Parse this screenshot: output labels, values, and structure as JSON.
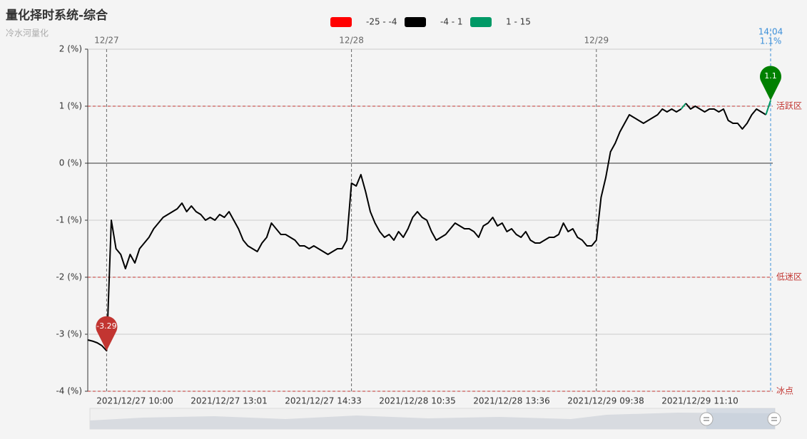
{
  "chart_data": {
    "type": "line",
    "title": "量化择时系统-综合",
    "subtitle": "冷水河量化",
    "categories": [
      null,
      null,
      null,
      null,
      null,
      null,
      null,
      null,
      null,
      null,
      "2021/12/27 10:00",
      null,
      null,
      null,
      null,
      null,
      null,
      null,
      null,
      null,
      null,
      null,
      null,
      null,
      null,
      null,
      null,
      null,
      null,
      null,
      "2021/12/27 13:01",
      null,
      null,
      null,
      null,
      null,
      null,
      null,
      null,
      null,
      null,
      null,
      null,
      null,
      null,
      null,
      null,
      null,
      null,
      null,
      "2021/12/27 14:33",
      null,
      null,
      null,
      null,
      null,
      null,
      null,
      null,
      null,
      null,
      null,
      null,
      null,
      null,
      null,
      null,
      null,
      null,
      null,
      "2021/12/28 10:35",
      null,
      null,
      null,
      null,
      null,
      null,
      null,
      null,
      null,
      null,
      null,
      null,
      null,
      null,
      null,
      null,
      null,
      null,
      null,
      "2021/12/28 13:36",
      null,
      null,
      null,
      null,
      null,
      null,
      null,
      null,
      null,
      null,
      null,
      null,
      null,
      null,
      null,
      null,
      null,
      null,
      null,
      "2021/12/29 09:38",
      null,
      null,
      null,
      null,
      null,
      null,
      null,
      null,
      null,
      null,
      null,
      null,
      null,
      null,
      null,
      null,
      null,
      null,
      null,
      "2021/12/29 11:10",
      null,
      null,
      null,
      null,
      null,
      null,
      null,
      null,
      null,
      null,
      null,
      null,
      null,
      null,
      null
    ],
    "top_categories": [
      null,
      null,
      null,
      null,
      "12/27",
      null,
      null,
      null,
      null,
      null,
      null,
      null,
      null,
      null,
      null,
      null,
      null,
      null,
      null,
      null,
      null,
      null,
      null,
      null,
      null,
      null,
      null,
      null,
      null,
      null,
      null,
      null,
      null,
      null,
      null,
      null,
      null,
      null,
      null,
      null,
      null,
      null,
      null,
      null,
      null,
      null,
      null,
      null,
      null,
      null,
      null,
      null,
      null,
      null,
      null,
      null,
      "12/28",
      null,
      null,
      null,
      null,
      null,
      null,
      null,
      null,
      null,
      null,
      null,
      null,
      null,
      null,
      null,
      null,
      null,
      null,
      null,
      null,
      null,
      null,
      null,
      null,
      null,
      null,
      null,
      null,
      null,
      null,
      null,
      null,
      null,
      null,
      null,
      null,
      null,
      null,
      null,
      null,
      null,
      null,
      null,
      null,
      null,
      null,
      null,
      null,
      null,
      null,
      null,
      "12/29",
      null,
      null,
      null,
      null,
      null,
      null,
      null,
      null,
      null,
      null,
      null,
      null,
      null,
      null,
      null,
      null,
      null,
      null,
      null,
      null,
      null,
      null,
      null,
      null,
      null,
      null,
      null,
      null,
      null,
      null,
      null,
      null,
      null,
      null,
      null,
      null,
      "14:04"
    ],
    "cursor_value_label": "1.1%",
    "values": [
      -3.1,
      -3.12,
      -3.15,
      -3.2,
      -3.29,
      -1.0,
      -1.5,
      -1.6,
      -1.85,
      -1.6,
      -1.75,
      -1.5,
      -1.4,
      -1.3,
      -1.15,
      -1.05,
      -0.95,
      -0.9,
      -0.85,
      -0.8,
      -0.7,
      -0.85,
      -0.75,
      -0.85,
      -0.9,
      -1.0,
      -0.95,
      -1.0,
      -0.9,
      -0.95,
      -0.85,
      -1.0,
      -1.15,
      -1.35,
      -1.45,
      -1.5,
      -1.55,
      -1.4,
      -1.3,
      -1.05,
      -1.15,
      -1.25,
      -1.25,
      -1.3,
      -1.35,
      -1.45,
      -1.45,
      -1.5,
      -1.45,
      -1.5,
      -1.55,
      -1.6,
      -1.55,
      -1.5,
      -1.5,
      -1.35,
      -0.35,
      -0.4,
      -0.2,
      -0.5,
      -0.85,
      -1.05,
      -1.2,
      -1.3,
      -1.25,
      -1.35,
      -1.2,
      -1.3,
      -1.15,
      -0.95,
      -0.85,
      -0.95,
      -1.0,
      -1.2,
      -1.35,
      -1.3,
      -1.25,
      -1.15,
      -1.05,
      -1.1,
      -1.15,
      -1.15,
      -1.2,
      -1.3,
      -1.1,
      -1.05,
      -0.95,
      -1.1,
      -1.05,
      -1.2,
      -1.15,
      -1.25,
      -1.3,
      -1.2,
      -1.35,
      -1.4,
      -1.4,
      -1.35,
      -1.3,
      -1.3,
      -1.25,
      -1.05,
      -1.2,
      -1.15,
      -1.3,
      -1.35,
      -1.45,
      -1.45,
      -1.35,
      -0.6,
      -0.25,
      0.2,
      0.35,
      0.55,
      0.7,
      0.85,
      0.8,
      0.75,
      0.7,
      0.75,
      0.8,
      0.85,
      0.95,
      0.9,
      0.95,
      0.9,
      0.95,
      1.05,
      0.95,
      1.0,
      0.95,
      0.9,
      0.95,
      0.95,
      0.9,
      0.95,
      0.75,
      0.7,
      0.7,
      0.6,
      0.7,
      0.85,
      0.95,
      0.9,
      0.85,
      1.1
    ],
    "pieces": [
      {
        "min": -25,
        "max": -4,
        "color": "#ff0000",
        "label": "-25 - -4"
      },
      {
        "min": -4,
        "max": 1,
        "color": "#000000",
        "label": "-4 - 1"
      },
      {
        "min": 1,
        "max": 15,
        "color": "#009966",
        "label": "1 - 15"
      }
    ],
    "mark_points": [
      {
        "value": -3.29,
        "color": "#c23531"
      },
      {
        "value": 1.1,
        "color": "#008000"
      }
    ],
    "mark_lines": [
      {
        "value": 1,
        "label": "活跃区"
      },
      {
        "value": -2,
        "label": "低迷区"
      },
      {
        "value": -4,
        "label": "冰点"
      }
    ],
    "ylim": [
      -4,
      2
    ],
    "yticks": [
      {
        "value": -4,
        "label": "-4 (%)"
      },
      {
        "value": -3,
        "label": "-3 (%)"
      },
      {
        "value": -2,
        "label": "-2 (%)"
      },
      {
        "value": -1,
        "label": "-1 (%)"
      },
      {
        "value": 0,
        "label": "0 (%)"
      },
      {
        "value": 1,
        "label": "1 (%)"
      },
      {
        "value": 2,
        "label": "2 (%)"
      }
    ],
    "grid": true
  }
}
